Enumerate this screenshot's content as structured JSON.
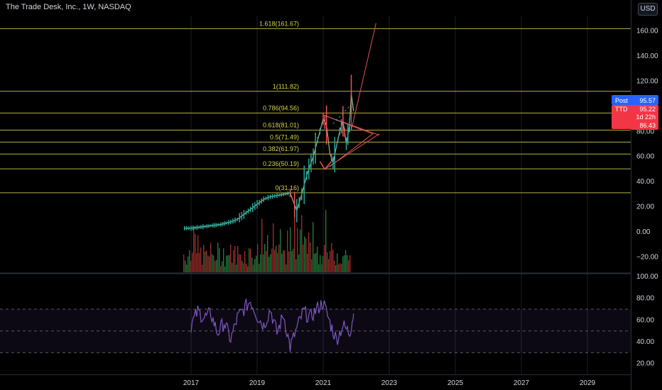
{
  "header": {
    "title": "The Trade Desk, Inc., 1W, NASDAQ",
    "currency": "USD"
  },
  "colors": {
    "background": "#000000",
    "fib": "#d4d24a",
    "up": "#26a69a",
    "down": "#ef5350",
    "volume_up": "#1f7a3a",
    "volume_down": "#9c2b2b",
    "rsi": "#7e57c2",
    "pattern": "#e0535a",
    "post_badge": "#2962ff",
    "ttd_badge": "#f23645"
  },
  "chart_data": [
    {
      "type": "line",
      "title": "",
      "ylim": [
        -32,
        172
      ],
      "y_ticks": [
        "160.00",
        "140.00",
        "120.00",
        "100.00",
        "80.00",
        "60.00",
        "40.00",
        "20.00",
        "0.00",
        "−20.00"
      ],
      "y_tick_values": [
        160,
        140,
        120,
        100,
        80,
        60,
        40,
        20,
        0,
        -20
      ],
      "x_ticks": [
        "2017",
        "2019",
        "2021",
        "2023",
        "2025",
        "2027",
        "2029"
      ],
      "x_tick_values": [
        2017,
        2019,
        2021,
        2023,
        2025,
        2027,
        2029
      ],
      "fib_levels": [
        {
          "label": "1.618(161.67)",
          "value": 161.67
        },
        {
          "label": "1(111.82)",
          "value": 111.82
        },
        {
          "label": "0.786(94.56)",
          "value": 94.56
        },
        {
          "label": "0.618(81.01)",
          "value": 81.01
        },
        {
          "label": "0.5(71.49)",
          "value": 71.49
        },
        {
          "label": "0.382(61.97)",
          "value": 61.97
        },
        {
          "label": "0.236(50.19)",
          "value": 50.19
        },
        {
          "label": "0(31.16)",
          "value": 31.16
        }
      ],
      "price_series": {
        "name": "TTD",
        "x": [
          2016.8,
          2017.0,
          2017.3,
          2017.6,
          2017.9,
          2018.2,
          2018.4,
          2018.6,
          2018.8,
          2019.0,
          2019.2,
          2019.4,
          2019.6,
          2019.8,
          2020.0,
          2020.2,
          2020.35,
          2020.5,
          2020.7,
          2020.9,
          2021.0,
          2021.1,
          2021.2,
          2021.3,
          2021.4,
          2021.5,
          2021.6,
          2021.7,
          2021.8,
          2021.85,
          2021.92
        ],
        "y": [
          3,
          3,
          4,
          5,
          6,
          8,
          10,
          14,
          18,
          22,
          26,
          28,
          29,
          30,
          31,
          17,
          30,
          45,
          60,
          80,
          90,
          85,
          63,
          55,
          68,
          80,
          88,
          70,
          85,
          110,
          96
        ]
      },
      "badges": [
        {
          "label": "Post",
          "value": "95.57"
        },
        {
          "label": "TTD",
          "value": "95.22"
        },
        {
          "label": "",
          "value": "1d 22h"
        },
        {
          "label": "",
          "value": "86.43"
        }
      ]
    },
    {
      "type": "line",
      "title": "",
      "ylim": [
        10,
        102
      ],
      "y_ticks": [
        "100.00",
        "80.00",
        "60.00",
        "40.00",
        "20.00"
      ],
      "y_tick_values": [
        100,
        80,
        60,
        40,
        20
      ],
      "band": [
        30,
        70
      ],
      "midline": 50,
      "rsi_series": {
        "name": "RSI",
        "x": [
          2017.0,
          2017.2,
          2017.4,
          2017.6,
          2017.8,
          2018.0,
          2018.2,
          2018.4,
          2018.6,
          2018.8,
          2019.0,
          2019.2,
          2019.4,
          2019.6,
          2019.8,
          2020.0,
          2020.2,
          2020.4,
          2020.6,
          2020.8,
          2021.0,
          2021.2,
          2021.4,
          2021.6,
          2021.8,
          2021.92
        ],
        "y": [
          55,
          68,
          62,
          66,
          48,
          58,
          42,
          62,
          70,
          78,
          64,
          55,
          70,
          48,
          65,
          35,
          52,
          68,
          62,
          70,
          76,
          58,
          42,
          55,
          48,
          66
        ]
      }
    }
  ]
}
